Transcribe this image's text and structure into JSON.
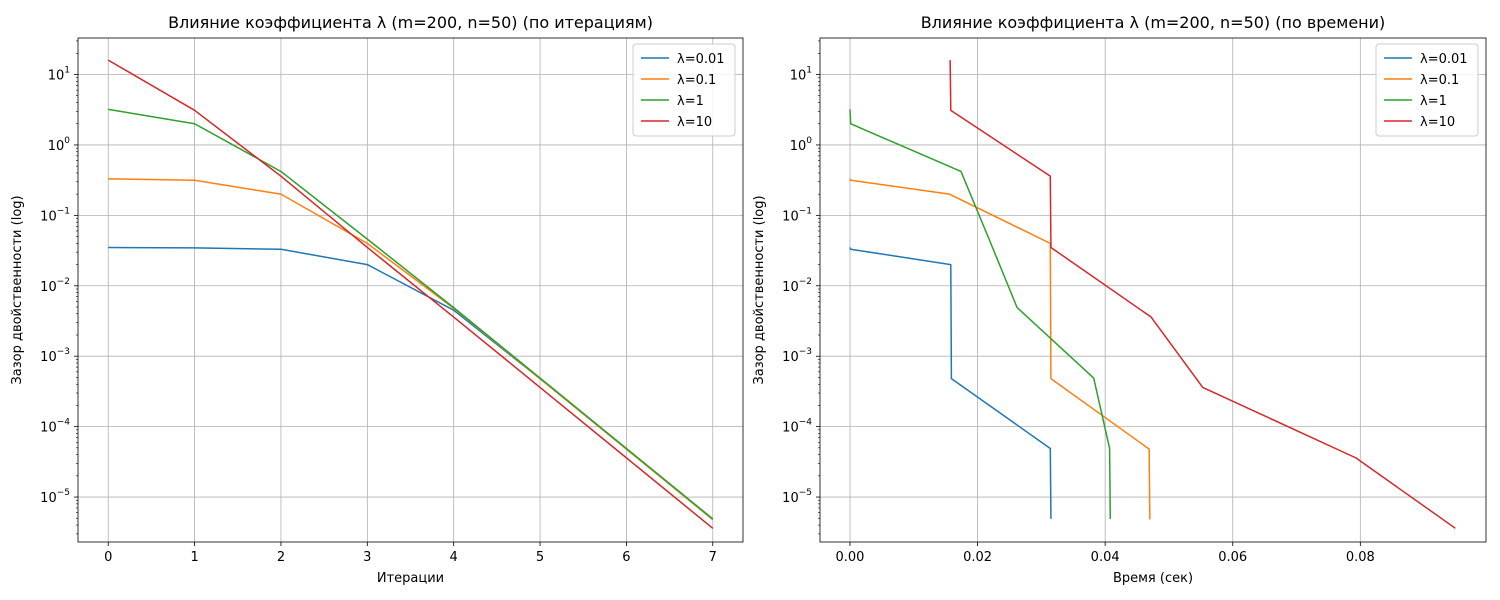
{
  "colors": {
    "blue": "#1f77b4",
    "orange": "#ff7f0e",
    "green": "#2ca02c",
    "red": "#d62728",
    "grid": "#b0b0b0"
  },
  "chart_data": [
    {
      "type": "line",
      "title": "Влияние коэффициента λ (m=200, n=50) (по итерациям)",
      "xlabel": "Итерации",
      "ylabel": "Зазор двойственности (log)",
      "yscale": "log",
      "grid": true,
      "legend": "upper right",
      "xlim": [
        -0.35,
        7.35
      ],
      "ylim": [
        2.3e-06,
        33
      ],
      "xticks": [
        0,
        1,
        2,
        3,
        4,
        5,
        6,
        7
      ],
      "xtick_labels": [
        "0",
        "1",
        "2",
        "3",
        "4",
        "5",
        "6",
        "7"
      ],
      "yticks": [
        1e-05,
        0.0001,
        0.001,
        0.01,
        0.1,
        1,
        10
      ],
      "ytick_labels": [
        {
          "base": "10",
          "exp": "−5"
        },
        {
          "base": "10",
          "exp": "−4"
        },
        {
          "base": "10",
          "exp": "−3"
        },
        {
          "base": "10",
          "exp": "−2"
        },
        {
          "base": "10",
          "exp": "−1"
        },
        {
          "base": "10",
          "exp": "0"
        },
        {
          "base": "10",
          "exp": "1"
        }
      ],
      "series": [
        {
          "name": "λ=0.01",
          "color": "blue",
          "x": [
            0,
            1,
            2,
            3,
            4,
            5,
            6,
            7
          ],
          "y": [
            0.035,
            0.0345,
            0.033,
            0.02,
            0.0045,
            0.00048,
            4.8e-05,
            4.8e-06
          ]
        },
        {
          "name": "λ=0.1",
          "color": "orange",
          "x": [
            0,
            1,
            2,
            3,
            4,
            5,
            6,
            7
          ],
          "y": [
            0.33,
            0.315,
            0.2,
            0.04,
            0.0048,
            0.00048,
            4.8e-05,
            4.8e-06
          ]
        },
        {
          "name": "λ=1",
          "color": "green",
          "x": [
            0,
            1,
            2,
            3,
            4,
            5,
            6,
            7
          ],
          "y": [
            3.2,
            2.0,
            0.42,
            0.046,
            0.0049,
            0.00049,
            4.9e-05,
            4.9e-06
          ]
        },
        {
          "name": "λ=10",
          "color": "red",
          "x": [
            0,
            1,
            2,
            3,
            4,
            5,
            6,
            7
          ],
          "y": [
            16,
            3.1,
            0.36,
            0.035,
            0.0036,
            0.00036,
            3.6e-05,
            3.6e-06
          ]
        }
      ]
    },
    {
      "type": "line",
      "title": "Влияние коэффициента λ (m=200, n=50) (по времени)",
      "xlabel": "Время (сек)",
      "ylabel": "Зазор двойственности (log)",
      "yscale": "log",
      "grid": true,
      "legend": "upper right",
      "xlim": [
        -0.0047,
        0.0997
      ],
      "ylim": [
        2.3e-06,
        33
      ],
      "xticks": [
        0,
        0.02,
        0.04,
        0.06,
        0.08
      ],
      "xtick_labels": [
        "0.00",
        "0.02",
        "0.04",
        "0.06",
        "0.08"
      ],
      "yticks": [
        1e-05,
        0.0001,
        0.001,
        0.01,
        0.1,
        1,
        10
      ],
      "ytick_labels": [
        {
          "base": "10",
          "exp": "−5"
        },
        {
          "base": "10",
          "exp": "−4"
        },
        {
          "base": "10",
          "exp": "−3"
        },
        {
          "base": "10",
          "exp": "−2"
        },
        {
          "base": "10",
          "exp": "−1"
        },
        {
          "base": "10",
          "exp": "0"
        },
        {
          "base": "10",
          "exp": "1"
        }
      ],
      "series": [
        {
          "name": "λ=0.01",
          "color": "blue",
          "x": [
            0.0,
            0.0001,
            0.0158,
            0.0159,
            0.0314,
            0.0315
          ],
          "y": [
            0.035,
            0.033,
            0.02,
            0.00048,
            4.9e-05,
            4.9e-06
          ]
        },
        {
          "name": "λ=0.1",
          "color": "orange",
          "x": [
            0.0,
            0.0001,
            0.0156,
            0.0314,
            0.0315,
            0.0469,
            0.047
          ],
          "y": [
            0.33,
            0.315,
            0.2,
            0.04,
            0.00048,
            4.8e-05,
            4.8e-06
          ]
        },
        {
          "name": "λ=1",
          "color": "green",
          "x": [
            0.0,
            0.0001,
            0.0174,
            0.0218,
            0.0262,
            0.0382,
            0.0407,
            0.0408
          ],
          "y": [
            3.2,
            2.0,
            0.42,
            0.046,
            0.0049,
            0.00049,
            4.9e-05,
            4.9e-06
          ]
        },
        {
          "name": "λ=10",
          "color": "red",
          "x": [
            0.0157,
            0.0158,
            0.0314,
            0.0315,
            0.0472,
            0.0553,
            0.0793,
            0.0949
          ],
          "y": [
            16,
            3.1,
            0.36,
            0.035,
            0.0036,
            0.00036,
            3.6e-05,
            3.6e-06
          ]
        }
      ]
    }
  ]
}
